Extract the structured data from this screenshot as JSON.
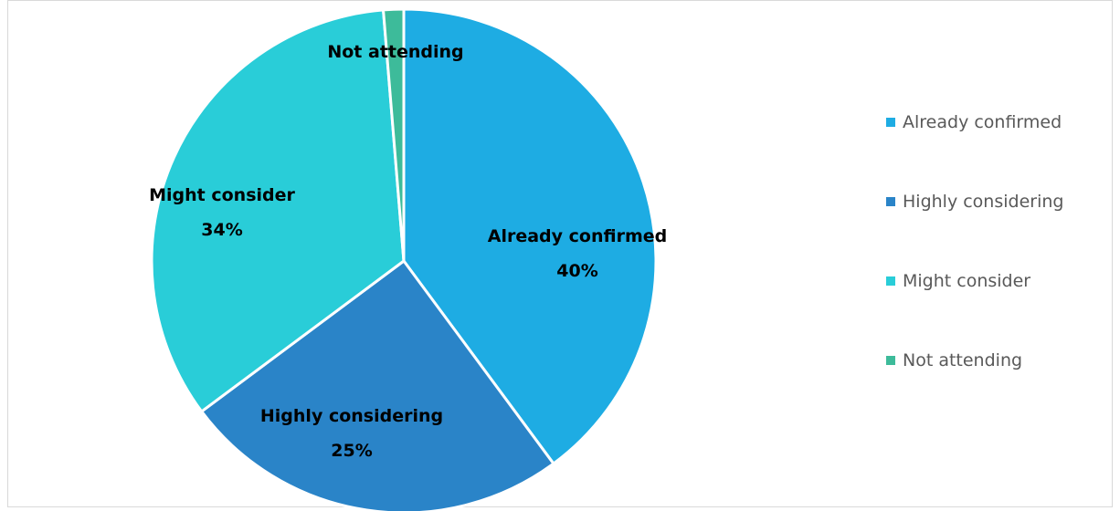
{
  "chart_data": {
    "type": "pie",
    "title": "",
    "start_angle_deg": 0,
    "direction": "clockwise",
    "legend_position": "right",
    "slices": [
      {
        "label": "Already confirmed",
        "value": 40,
        "value_label": "40%",
        "color": "#1EACE3"
      },
      {
        "label": "Highly considering",
        "value": 25,
        "value_label": "25%",
        "color": "#2A84C8"
      },
      {
        "label": "Might consider",
        "value": 34,
        "value_label": "34%",
        "color": "#29CDD8"
      },
      {
        "label": "Not attending",
        "value": 1.3,
        "value_label": "",
        "color": "#3DBB9A"
      }
    ]
  },
  "legend": {
    "items": [
      {
        "label": "Already confirmed",
        "color": "#1EACE3"
      },
      {
        "label": "Highly considering",
        "color": "#2A84C8"
      },
      {
        "label": "Might consider",
        "color": "#29CDD8"
      },
      {
        "label": "Not attending",
        "color": "#3DBB9A"
      }
    ]
  }
}
